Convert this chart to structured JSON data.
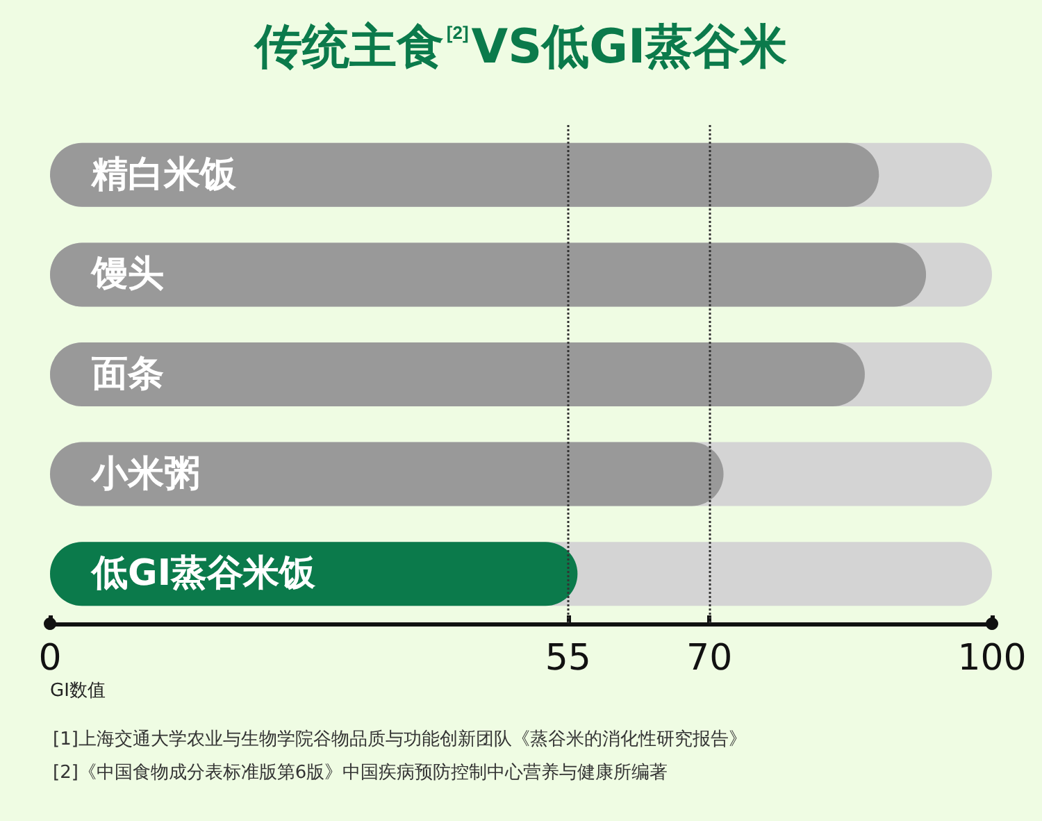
{
  "chart_data": {
    "type": "bar",
    "orientation": "horizontal",
    "title": "传统主食$^{[2]}$VS低GI蒸谷米",
    "xlabel": "GI数值",
    "categories": [
      "精白米饭",
      "馒头",
      "面条",
      "小米粥",
      "低GI蒸谷米饭"
    ],
    "values": [
      88,
      93,
      86.5,
      71.5,
      56
    ],
    "colors": [
      "#999999",
      "#999999",
      "#999999",
      "#999999",
      "#0b7a4b"
    ],
    "xlim": [
      0,
      100
    ],
    "xticks": [
      0,
      55,
      70,
      100
    ],
    "ref_lines": [
      {
        "axis": "x",
        "value": 55,
        "line_style": "dotted",
        "color": "#333333"
      },
      {
        "axis": "x",
        "value": 70,
        "line_style": "dotted",
        "color": "#333333"
      }
    ],
    "annotations": [
      "[1]上海交通大学农业与生物学院谷物品质与功能创新团队《蒸谷米的消化性研究报告》",
      "[2]《中国食物成分表标准版第6版》中国疾病预防控制中心营养与健康所编著"
    ],
    "tick_labels": "x"
  }
}
